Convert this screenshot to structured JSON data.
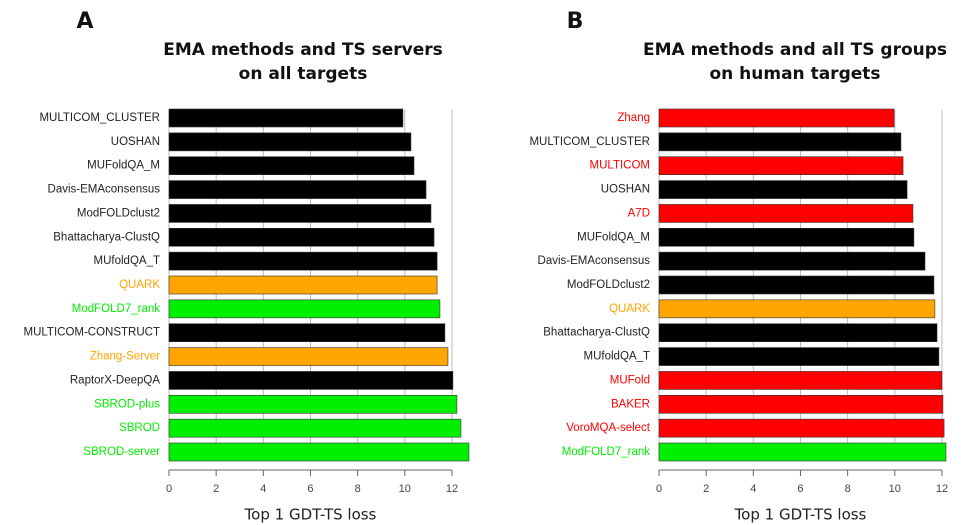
{
  "chart_data": [
    {
      "type": "barh",
      "panel_label": "A",
      "title": [
        "EMA methods and TS servers",
        "on all targets"
      ],
      "x_label": "Top 1 GDT-TS loss",
      "categories": [
        "MULTICOM_CLUSTER",
        "UOSHAN",
        "MUFoldQA_M",
        "Davis-EMAconsensus",
        "ModFOLDclust2",
        "Bhattacharya-ClustQ",
        "MUfoldQA_T",
        "QUARK",
        "ModFOLD7_rank",
        "MULTICOM-CONSTRUCT",
        "Zhang-Server",
        "RaptorX-DeepQA",
        "SBROD-plus",
        "SBROD",
        "SBROD-server"
      ],
      "values": [
        9.92,
        10.26,
        10.39,
        10.9,
        11.11,
        11.24,
        11.37,
        11.37,
        11.49,
        11.7,
        11.83,
        12.04,
        12.21,
        12.38,
        12.72
      ],
      "colors": [
        "#000000",
        "#000000",
        "#000000",
        "#000000",
        "#000000",
        "#000000",
        "#000000",
        "#ffa500",
        "#00ee00",
        "#000000",
        "#ffa500",
        "#000000",
        "#00ee00",
        "#00ee00",
        "#00ee00"
      ],
      "xlim": [
        0,
        12.8
      ],
      "xticks": [
        0,
        2,
        4,
        6,
        8,
        10,
        12
      ],
      "grid": true
    },
    {
      "type": "barh",
      "panel_label": "B",
      "title": [
        "EMA methods and all TS groups",
        "on human targets"
      ],
      "x_label": "Top 1 GDT-TS loss",
      "categories": [
        "Zhang",
        "MULTICOM_CLUSTER",
        "MULTICOM",
        "UOSHAN",
        "A7D",
        "MUFoldQA_M",
        "Davis-EMAconsensus",
        "ModFOLDclust2",
        "QUARK",
        "Bhattacharya-ClustQ",
        "MUfoldQA_T",
        "MUFold",
        "BAKER",
        "VoroMQA-select",
        "ModFOLD7_rank"
      ],
      "values": [
        9.97,
        10.26,
        10.35,
        10.52,
        10.77,
        10.81,
        11.28,
        11.66,
        11.7,
        11.79,
        11.87,
        12.0,
        12.04,
        12.09,
        12.17
      ],
      "colors": [
        "#ff0000",
        "#000000",
        "#ff0000",
        "#000000",
        "#ff0000",
        "#000000",
        "#000000",
        "#000000",
        "#ffa500",
        "#000000",
        "#000000",
        "#ff0000",
        "#ff0000",
        "#ff0000",
        "#00ee00"
      ],
      "xlim": [
        0,
        12.2
      ],
      "xticks": [
        0,
        2,
        4,
        6,
        8,
        10,
        12
      ],
      "grid": true
    }
  ]
}
